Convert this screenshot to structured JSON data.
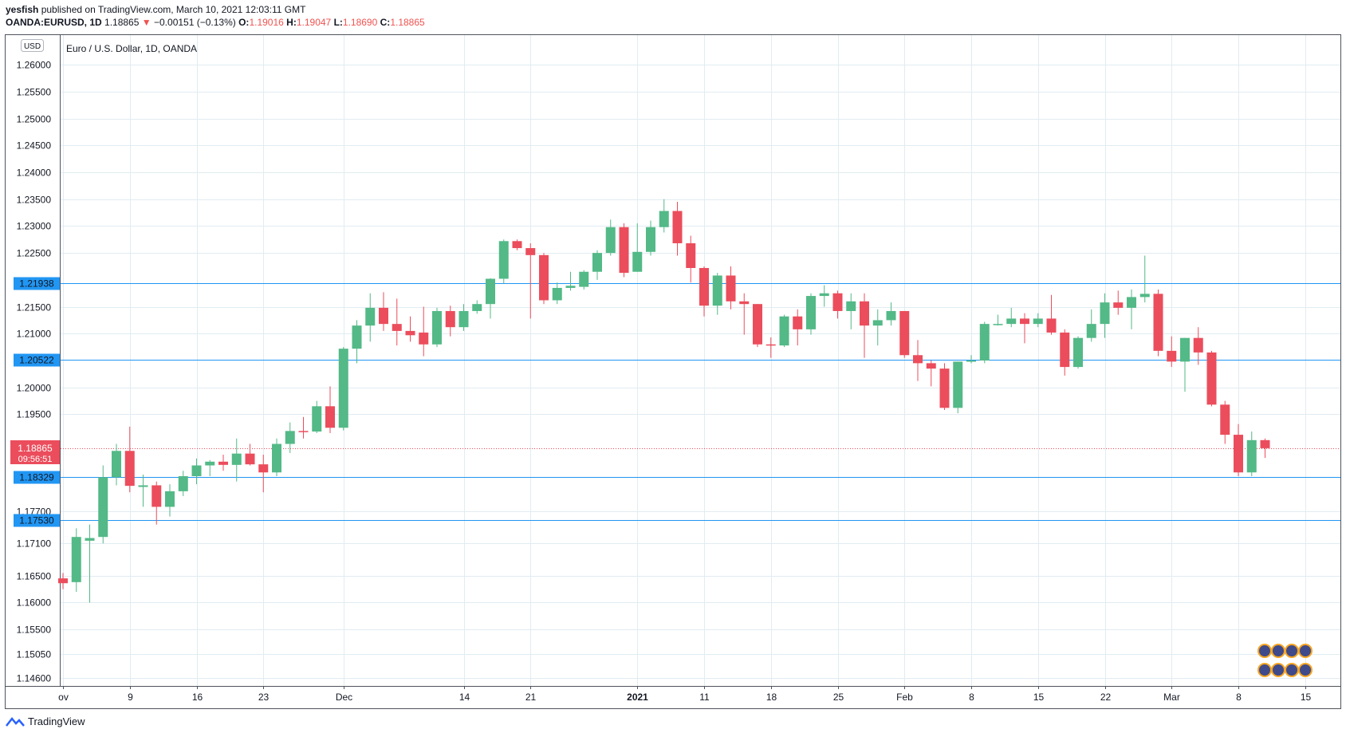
{
  "header": {
    "author": "yesfish",
    "published_text": "published on TradingView.com, March 10, 2021 12:03:11 GMT",
    "symbol": "OANDA:EURUSD, 1D",
    "last": "1.18865",
    "change": "−0.00151 (−0.13%)",
    "o_label": "O:",
    "o_value": "1.19016",
    "h_label": "H:",
    "h_value": "1.19047",
    "l_label": "L:",
    "l_value": "1.18690",
    "c_label": "C:",
    "c_value": "1.18865"
  },
  "footer": {
    "brand": "TradingView"
  },
  "colors": {
    "up": "#26a69a",
    "up_body": "#53b987",
    "down": "#eb4d5c",
    "hline": "#2196f3",
    "grid": "#e1ecf2"
  },
  "chart_data": {
    "type": "candlestick",
    "title": "Euro / U.S. Dollar, 1D, OANDA",
    "currency": "USD",
    "ylim": [
      1.1445,
      1.2655
    ],
    "y_ticks": [
      1.26,
      1.255,
      1.25,
      1.245,
      1.24,
      1.235,
      1.23,
      1.225,
      1.215,
      1.21,
      1.2,
      1.195,
      1.177,
      1.171,
      1.165,
      1.16,
      1.155,
      1.1505,
      1.146
    ],
    "y_tick_labels": [
      "1.26000",
      "1.25500",
      "1.25000",
      "1.24500",
      "1.24000",
      "1.23500",
      "1.23000",
      "1.22500",
      "1.21500",
      "1.21000",
      "1.20000",
      "1.19500",
      "1.17700",
      "1.17100",
      "1.16500",
      "1.16000",
      "1.15500",
      "1.15050",
      "1.14600"
    ],
    "x_ticks": [
      {
        "label": "ov",
        "day": 0
      },
      {
        "label": "9",
        "day": 5
      },
      {
        "label": "16",
        "day": 10
      },
      {
        "label": "23",
        "day": 15
      },
      {
        "label": "Dec",
        "day": 21
      },
      {
        "label": "14",
        "day": 30
      },
      {
        "label": "21",
        "day": 35
      },
      {
        "label": "2021",
        "day": 43
      },
      {
        "label": "11",
        "day": 48
      },
      {
        "label": "18",
        "day": 53
      },
      {
        "label": "25",
        "day": 58
      },
      {
        "label": "Feb",
        "day": 63
      },
      {
        "label": "8",
        "day": 68
      },
      {
        "label": "15",
        "day": 73
      },
      {
        "label": "22",
        "day": 78
      },
      {
        "label": "Mar",
        "day": 83
      },
      {
        "label": "8",
        "day": 88
      },
      {
        "label": "15",
        "day": 93
      }
    ],
    "horizontal_lines": [
      {
        "value": 1.21938,
        "label": "1.21938"
      },
      {
        "value": 1.20522,
        "label": "1.20522"
      },
      {
        "value": 1.18329,
        "label": "1.18329"
      },
      {
        "value": 1.1753,
        "label": "1.17530"
      }
    ],
    "current_price": {
      "value": 1.18865,
      "label": "1.18865",
      "countdown": "09:56:51"
    },
    "candles": [
      {
        "d": 0,
        "o": 1.1645,
        "h": 1.1655,
        "l": 1.1625,
        "c": 1.1636
      },
      {
        "d": 1,
        "o": 1.1638,
        "h": 1.1738,
        "l": 1.162,
        "c": 1.1722
      },
      {
        "d": 2,
        "o": 1.1715,
        "h": 1.1745,
        "l": 1.16,
        "c": 1.172
      },
      {
        "d": 3,
        "o": 1.1722,
        "h": 1.1855,
        "l": 1.171,
        "c": 1.1833
      },
      {
        "d": 4,
        "o": 1.1833,
        "h": 1.1895,
        "l": 1.1818,
        "c": 1.1882
      },
      {
        "d": 5,
        "o": 1.1882,
        "h": 1.1927,
        "l": 1.1805,
        "c": 1.1817
      },
      {
        "d": 6,
        "o": 1.1815,
        "h": 1.1838,
        "l": 1.1778,
        "c": 1.1818
      },
      {
        "d": 7,
        "o": 1.1818,
        "h": 1.1825,
        "l": 1.1745,
        "c": 1.1778
      },
      {
        "d": 8,
        "o": 1.1778,
        "h": 1.182,
        "l": 1.176,
        "c": 1.1807
      },
      {
        "d": 9,
        "o": 1.1807,
        "h": 1.1845,
        "l": 1.1798,
        "c": 1.1835
      },
      {
        "d": 10,
        "o": 1.1835,
        "h": 1.1868,
        "l": 1.182,
        "c": 1.1855
      },
      {
        "d": 11,
        "o": 1.1855,
        "h": 1.1865,
        "l": 1.1835,
        "c": 1.1862
      },
      {
        "d": 12,
        "o": 1.1862,
        "h": 1.1875,
        "l": 1.1845,
        "c": 1.1856
      },
      {
        "d": 13,
        "o": 1.1856,
        "h": 1.1905,
        "l": 1.1825,
        "c": 1.1877
      },
      {
        "d": 14,
        "o": 1.1877,
        "h": 1.1895,
        "l": 1.1855,
        "c": 1.1857
      },
      {
        "d": 15,
        "o": 1.1857,
        "h": 1.1875,
        "l": 1.1805,
        "c": 1.1842
      },
      {
        "d": 16,
        "o": 1.1842,
        "h": 1.1905,
        "l": 1.1835,
        "c": 1.1895
      },
      {
        "d": 17,
        "o": 1.1895,
        "h": 1.1935,
        "l": 1.1878,
        "c": 1.1919
      },
      {
        "d": 18,
        "o": 1.1919,
        "h": 1.1945,
        "l": 1.1905,
        "c": 1.1918
      },
      {
        "d": 19,
        "o": 1.1918,
        "h": 1.1975,
        "l": 1.1915,
        "c": 1.1965
      },
      {
        "d": 20,
        "o": 1.1965,
        "h": 1.2002,
        "l": 1.1915,
        "c": 1.1925
      },
      {
        "d": 21,
        "o": 1.1925,
        "h": 1.2075,
        "l": 1.192,
        "c": 1.2072
      },
      {
        "d": 22,
        "o": 1.2072,
        "h": 1.2125,
        "l": 1.2045,
        "c": 1.2115
      },
      {
        "d": 23,
        "o": 1.2115,
        "h": 1.2175,
        "l": 1.2085,
        "c": 1.2148
      },
      {
        "d": 24,
        "o": 1.2148,
        "h": 1.2177,
        "l": 1.2105,
        "c": 1.2118
      },
      {
        "d": 25,
        "o": 1.2118,
        "h": 1.2165,
        "l": 1.2078,
        "c": 1.2105
      },
      {
        "d": 26,
        "o": 1.2105,
        "h": 1.2132,
        "l": 1.2085,
        "c": 1.2097
      },
      {
        "d": 27,
        "o": 1.2102,
        "h": 1.215,
        "l": 1.2058,
        "c": 1.208
      },
      {
        "d": 28,
        "o": 1.208,
        "h": 1.2148,
        "l": 1.2075,
        "c": 1.2142
      },
      {
        "d": 29,
        "o": 1.2142,
        "h": 1.2152,
        "l": 1.2095,
        "c": 1.2112
      },
      {
        "d": 30,
        "o": 1.2112,
        "h": 1.2155,
        "l": 1.2105,
        "c": 1.2142
      },
      {
        "d": 31,
        "o": 1.2142,
        "h": 1.2162,
        "l": 1.2137,
        "c": 1.2155
      },
      {
        "d": 32,
        "o": 1.2155,
        "h": 1.2203,
        "l": 1.2128,
        "c": 1.2202
      },
      {
        "d": 33,
        "o": 1.2202,
        "h": 1.2275,
        "l": 1.2193,
        "c": 1.2272
      },
      {
        "d": 34,
        "o": 1.2272,
        "h": 1.2275,
        "l": 1.2255,
        "c": 1.2259
      },
      {
        "d": 35,
        "o": 1.2259,
        "h": 1.2268,
        "l": 1.2128,
        "c": 1.2246
      },
      {
        "d": 36,
        "o": 1.2246,
        "h": 1.225,
        "l": 1.2155,
        "c": 1.2162
      },
      {
        "d": 37,
        "o": 1.2162,
        "h": 1.2195,
        "l": 1.2155,
        "c": 1.2185
      },
      {
        "d": 38,
        "o": 1.2185,
        "h": 1.2215,
        "l": 1.218,
        "c": 1.2189
      },
      {
        "d": 39,
        "o": 1.2187,
        "h": 1.2218,
        "l": 1.2182,
        "c": 1.2215
      },
      {
        "d": 40,
        "o": 1.2215,
        "h": 1.2255,
        "l": 1.22,
        "c": 1.225
      },
      {
        "d": 41,
        "o": 1.225,
        "h": 1.2312,
        "l": 1.2245,
        "c": 1.2298
      },
      {
        "d": 42,
        "o": 1.2298,
        "h": 1.2305,
        "l": 1.2205,
        "c": 1.2213
      },
      {
        "d": 43,
        "o": 1.2215,
        "h": 1.2305,
        "l": 1.2215,
        "c": 1.2252
      },
      {
        "d": 44,
        "o": 1.2252,
        "h": 1.231,
        "l": 1.2245,
        "c": 1.2298
      },
      {
        "d": 45,
        "o": 1.2298,
        "h": 1.235,
        "l": 1.2288,
        "c": 1.2328
      },
      {
        "d": 46,
        "o": 1.2328,
        "h": 1.2345,
        "l": 1.2245,
        "c": 1.2268
      },
      {
        "d": 47,
        "o": 1.2268,
        "h": 1.2282,
        "l": 1.2195,
        "c": 1.2222
      },
      {
        "d": 48,
        "o": 1.2222,
        "h": 1.2225,
        "l": 1.2132,
        "c": 1.2152
      },
      {
        "d": 49,
        "o": 1.2152,
        "h": 1.2213,
        "l": 1.2135,
        "c": 1.2208
      },
      {
        "d": 50,
        "o": 1.2208,
        "h": 1.2225,
        "l": 1.2145,
        "c": 1.216
      },
      {
        "d": 51,
        "o": 1.216,
        "h": 1.2175,
        "l": 1.2098,
        "c": 1.2155
      },
      {
        "d": 52,
        "o": 1.2155,
        "h": 1.2155,
        "l": 1.2075,
        "c": 1.208
      },
      {
        "d": 53,
        "o": 1.208,
        "h": 1.2093,
        "l": 1.2055,
        "c": 1.2078
      },
      {
        "d": 54,
        "o": 1.2078,
        "h": 1.2135,
        "l": 1.2075,
        "c": 1.2132
      },
      {
        "d": 55,
        "o": 1.2132,
        "h": 1.2145,
        "l": 1.2078,
        "c": 1.2108
      },
      {
        "d": 56,
        "o": 1.2108,
        "h": 1.2175,
        "l": 1.2098,
        "c": 1.217
      },
      {
        "d": 57,
        "o": 1.217,
        "h": 1.219,
        "l": 1.215,
        "c": 1.2175
      },
      {
        "d": 58,
        "o": 1.2175,
        "h": 1.218,
        "l": 1.2128,
        "c": 1.2142
      },
      {
        "d": 59,
        "o": 1.2142,
        "h": 1.2175,
        "l": 1.2108,
        "c": 1.216
      },
      {
        "d": 60,
        "o": 1.216,
        "h": 1.2175,
        "l": 1.2055,
        "c": 1.2115
      },
      {
        "d": 61,
        "o": 1.2115,
        "h": 1.2145,
        "l": 1.2078,
        "c": 1.2125
      },
      {
        "d": 62,
        "o": 1.2125,
        "h": 1.2158,
        "l": 1.2115,
        "c": 1.2142
      },
      {
        "d": 63,
        "o": 1.2142,
        "h": 1.2142,
        "l": 1.2055,
        "c": 1.206
      },
      {
        "d": 64,
        "o": 1.206,
        "h": 1.2088,
        "l": 1.2012,
        "c": 1.2045
      },
      {
        "d": 65,
        "o": 1.2045,
        "h": 1.205,
        "l": 1.2002,
        "c": 1.2035
      },
      {
        "d": 66,
        "o": 1.2035,
        "h": 1.2045,
        "l": 1.1958,
        "c": 1.1962
      },
      {
        "d": 67,
        "o": 1.1962,
        "h": 1.2048,
        "l": 1.1952,
        "c": 1.2048
      },
      {
        "d": 68,
        "o": 1.2048,
        "h": 1.206,
        "l": 1.2045,
        "c": 1.205
      },
      {
        "d": 69,
        "o": 1.205,
        "h": 1.2122,
        "l": 1.2045,
        "c": 1.2118
      },
      {
        "d": 70,
        "o": 1.2118,
        "h": 1.2135,
        "l": 1.2115,
        "c": 1.2118
      },
      {
        "d": 71,
        "o": 1.2118,
        "h": 1.2148,
        "l": 1.2112,
        "c": 1.2128
      },
      {
        "d": 72,
        "o": 1.2128,
        "h": 1.2138,
        "l": 1.2082,
        "c": 1.2118
      },
      {
        "d": 73,
        "o": 1.2118,
        "h": 1.2138,
        "l": 1.2112,
        "c": 1.2128
      },
      {
        "d": 74,
        "o": 1.2128,
        "h": 1.2172,
        "l": 1.2098,
        "c": 1.2102
      },
      {
        "d": 75,
        "o": 1.2102,
        "h": 1.2108,
        "l": 1.2022,
        "c": 1.2038
      },
      {
        "d": 76,
        "o": 1.2038,
        "h": 1.2095,
        "l": 1.2035,
        "c": 1.2092
      },
      {
        "d": 77,
        "o": 1.2092,
        "h": 1.2145,
        "l": 1.2085,
        "c": 1.2118
      },
      {
        "d": 78,
        "o": 1.2118,
        "h": 1.2175,
        "l": 1.2092,
        "c": 1.2158
      },
      {
        "d": 79,
        "o": 1.2158,
        "h": 1.218,
        "l": 1.2135,
        "c": 1.2148
      },
      {
        "d": 80,
        "o": 1.2148,
        "h": 1.2182,
        "l": 1.2108,
        "c": 1.2168
      },
      {
        "d": 81,
        "o": 1.2168,
        "h": 1.2245,
        "l": 1.2158,
        "c": 1.2174
      },
      {
        "d": 82,
        "o": 1.2174,
        "h": 1.2182,
        "l": 1.2058,
        "c": 1.2068
      },
      {
        "d": 83,
        "o": 1.2068,
        "h": 1.2095,
        "l": 1.2038,
        "c": 1.2048
      },
      {
        "d": 84,
        "o": 1.2048,
        "h": 1.2092,
        "l": 1.1992,
        "c": 1.2092
      },
      {
        "d": 85,
        "o": 1.2092,
        "h": 1.2112,
        "l": 1.2042,
        "c": 1.2065
      },
      {
        "d": 86,
        "o": 1.2065,
        "h": 1.2068,
        "l": 1.1965,
        "c": 1.1968
      },
      {
        "d": 87,
        "o": 1.1968,
        "h": 1.1975,
        "l": 1.1895,
        "c": 1.1912
      },
      {
        "d": 88,
        "o": 1.1912,
        "h": 1.1932,
        "l": 1.1835,
        "c": 1.1842
      },
      {
        "d": 89,
        "o": 1.1842,
        "h": 1.1918,
        "l": 1.1835,
        "c": 1.1902
      },
      {
        "d": 90,
        "o": 1.1902,
        "h": 1.1905,
        "l": 1.1869,
        "c": 1.1887
      }
    ]
  }
}
